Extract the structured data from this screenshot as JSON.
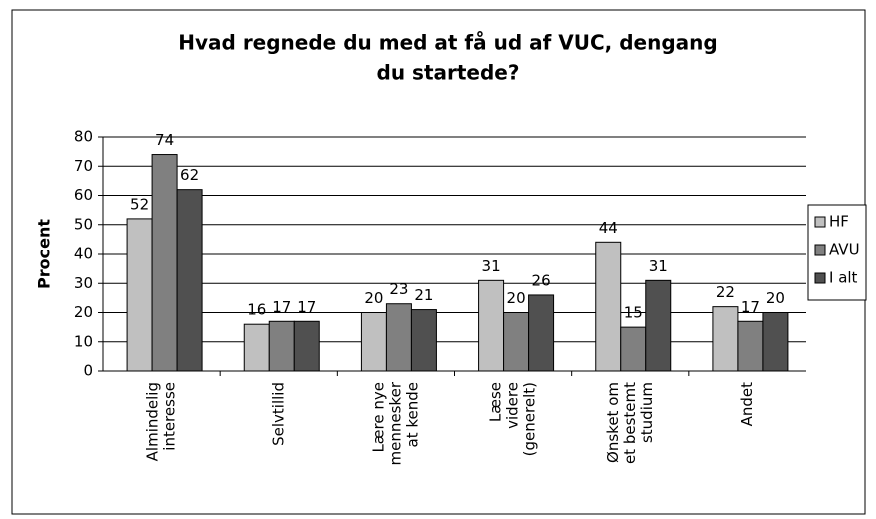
{
  "chart_data": {
    "type": "bar",
    "title": [
      "Hvad regnede du med at få ud af VUC, dengang",
      "du startede?"
    ],
    "y_label": "Procent",
    "categories": [
      [
        "Almindelig",
        "interesse"
      ],
      [
        "Selvtillid"
      ],
      [
        "Lære nye",
        "mennesker",
        "at kende"
      ],
      [
        "Læse",
        "videre",
        "(generelt)"
      ],
      [
        "Ønsket om",
        "et bestemt",
        "studium"
      ],
      [
        "Andet"
      ]
    ],
    "series": [
      {
        "name": "HF",
        "color": "#c0c0c0",
        "values": [
          52,
          16,
          20,
          31,
          44,
          22
        ]
      },
      {
        "name": "AVU",
        "color": "#808080",
        "values": [
          74,
          17,
          23,
          20,
          15,
          17
        ]
      },
      {
        "name": "I alt",
        "color": "#505050",
        "values": [
          62,
          17,
          21,
          26,
          31,
          20
        ]
      }
    ],
    "ylim": [
      0,
      80
    ],
    "yticks": [
      0,
      10,
      20,
      30,
      40,
      50,
      60,
      70,
      80
    ],
    "grid": true,
    "legend": "right"
  }
}
